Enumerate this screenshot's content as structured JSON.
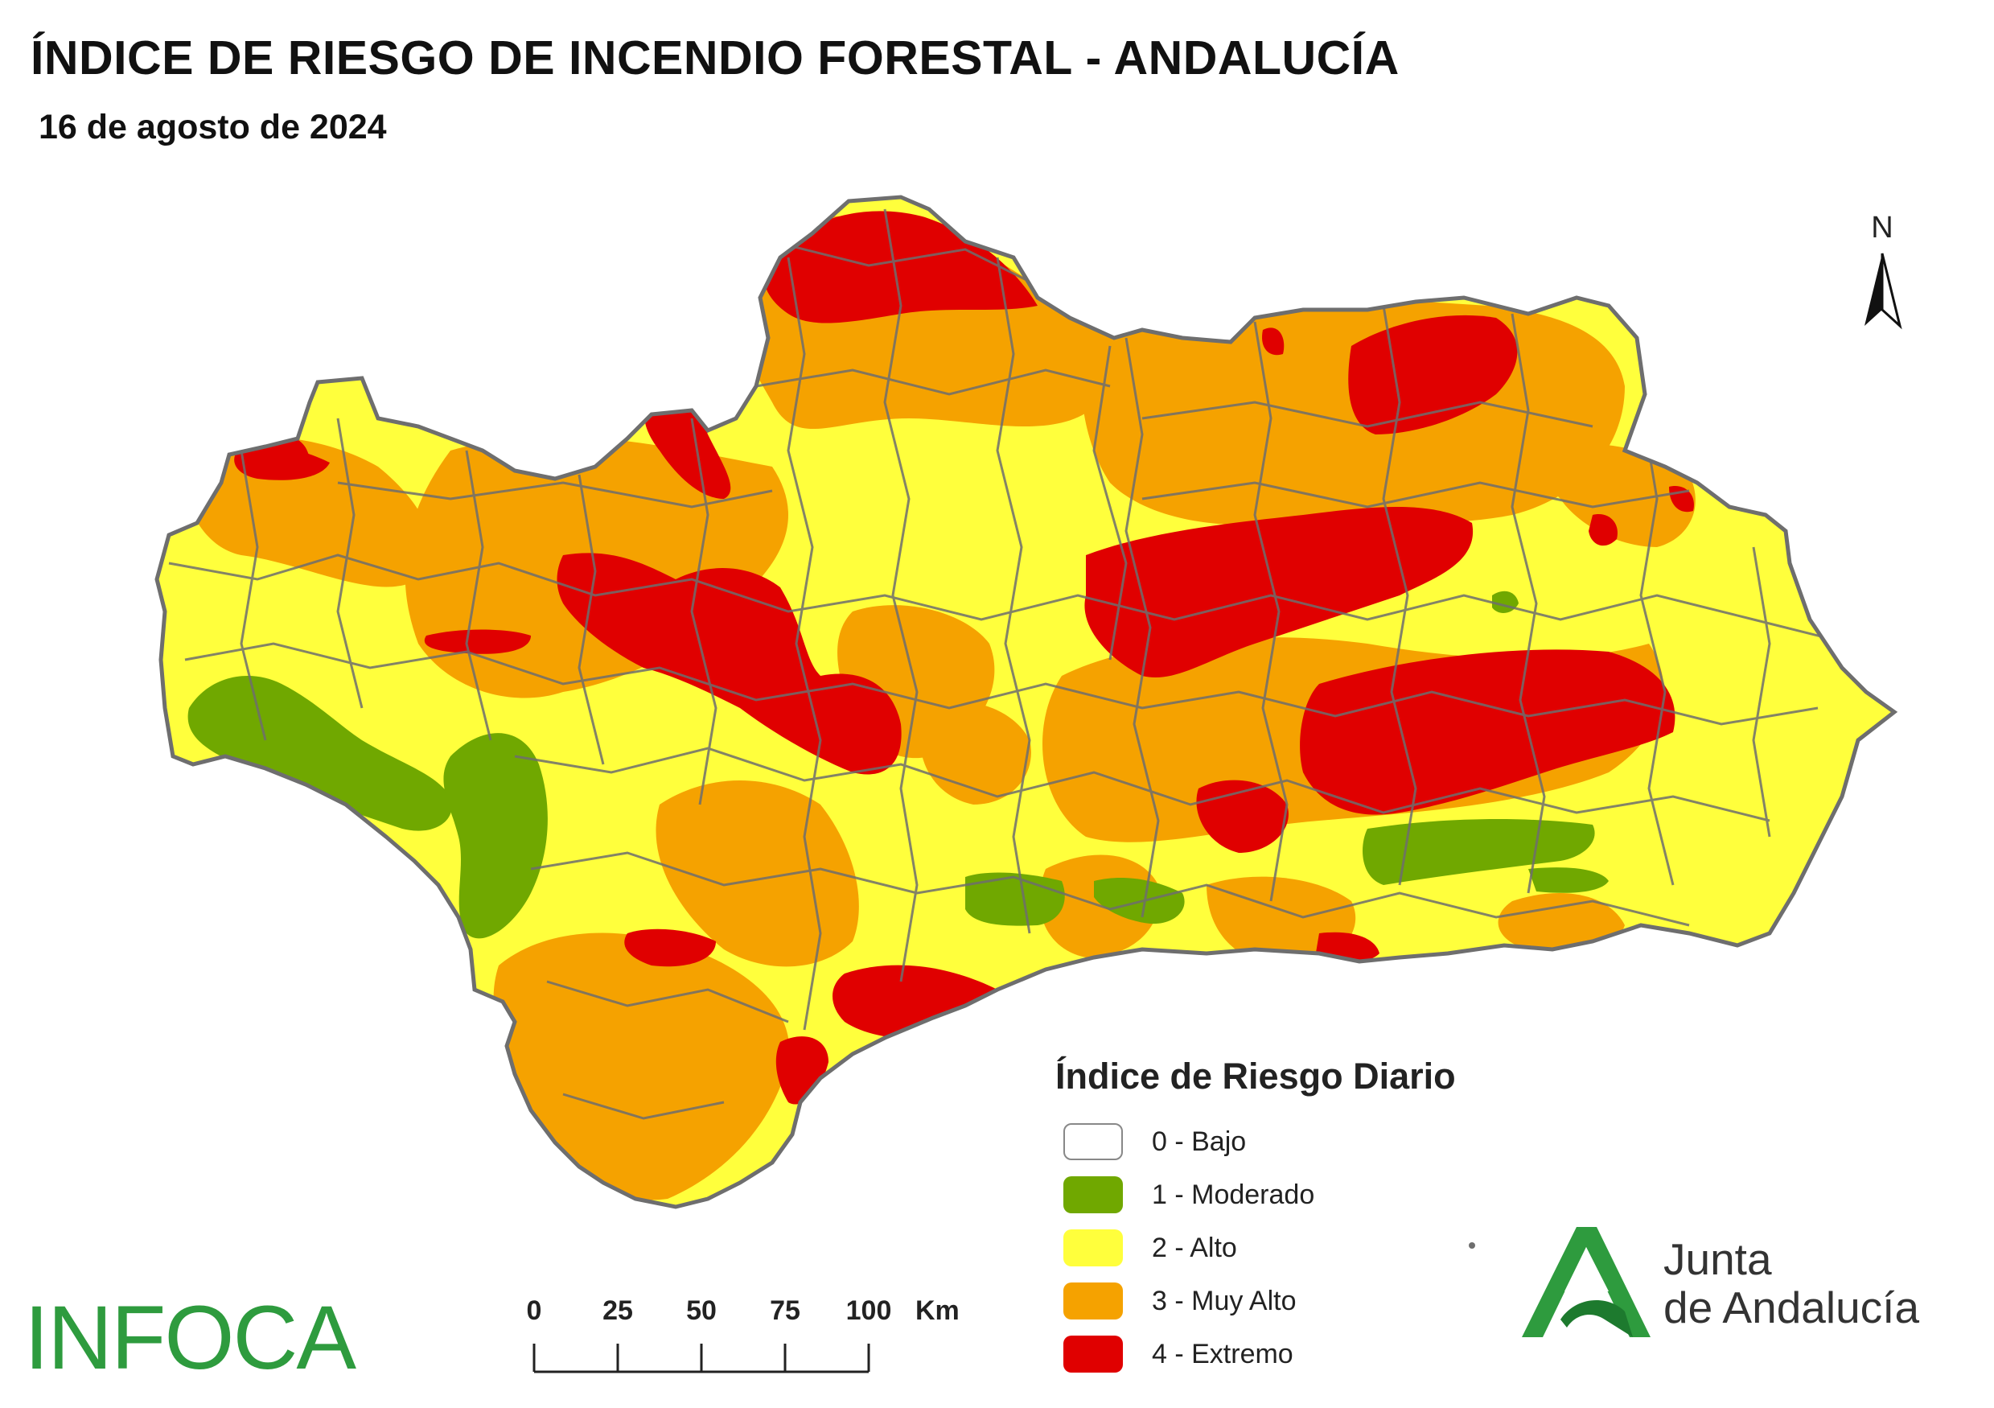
{
  "header": {
    "title": "ÍNDICE DE RIESGO DE INCENDIO FORESTAL - ANDALUCÍA",
    "date": "16 de agosto de 2024"
  },
  "legend": {
    "title": "Índice de Riesgo Diario",
    "items": [
      {
        "label": "0 - Bajo",
        "color": "#ffffff"
      },
      {
        "label": "1 - Moderado",
        "color": "#70a800"
      },
      {
        "label": "2 - Alto",
        "color": "#ffff3c"
      },
      {
        "label": "3 - Muy Alto",
        "color": "#f5a200"
      },
      {
        "label": "4 - Extremo",
        "color": "#e00000"
      }
    ]
  },
  "scale_bar": {
    "ticks": [
      "0",
      "25",
      "50",
      "75",
      "100"
    ],
    "unit": "Km"
  },
  "north_arrow": {
    "label": "N"
  },
  "logos": {
    "infoca": "INFOCA",
    "junta_line1": "Junta",
    "junta_line2": "de Andalucía"
  },
  "colors": {
    "boundary": "#6e6e6e",
    "logo_green": "#2e9b3e"
  }
}
